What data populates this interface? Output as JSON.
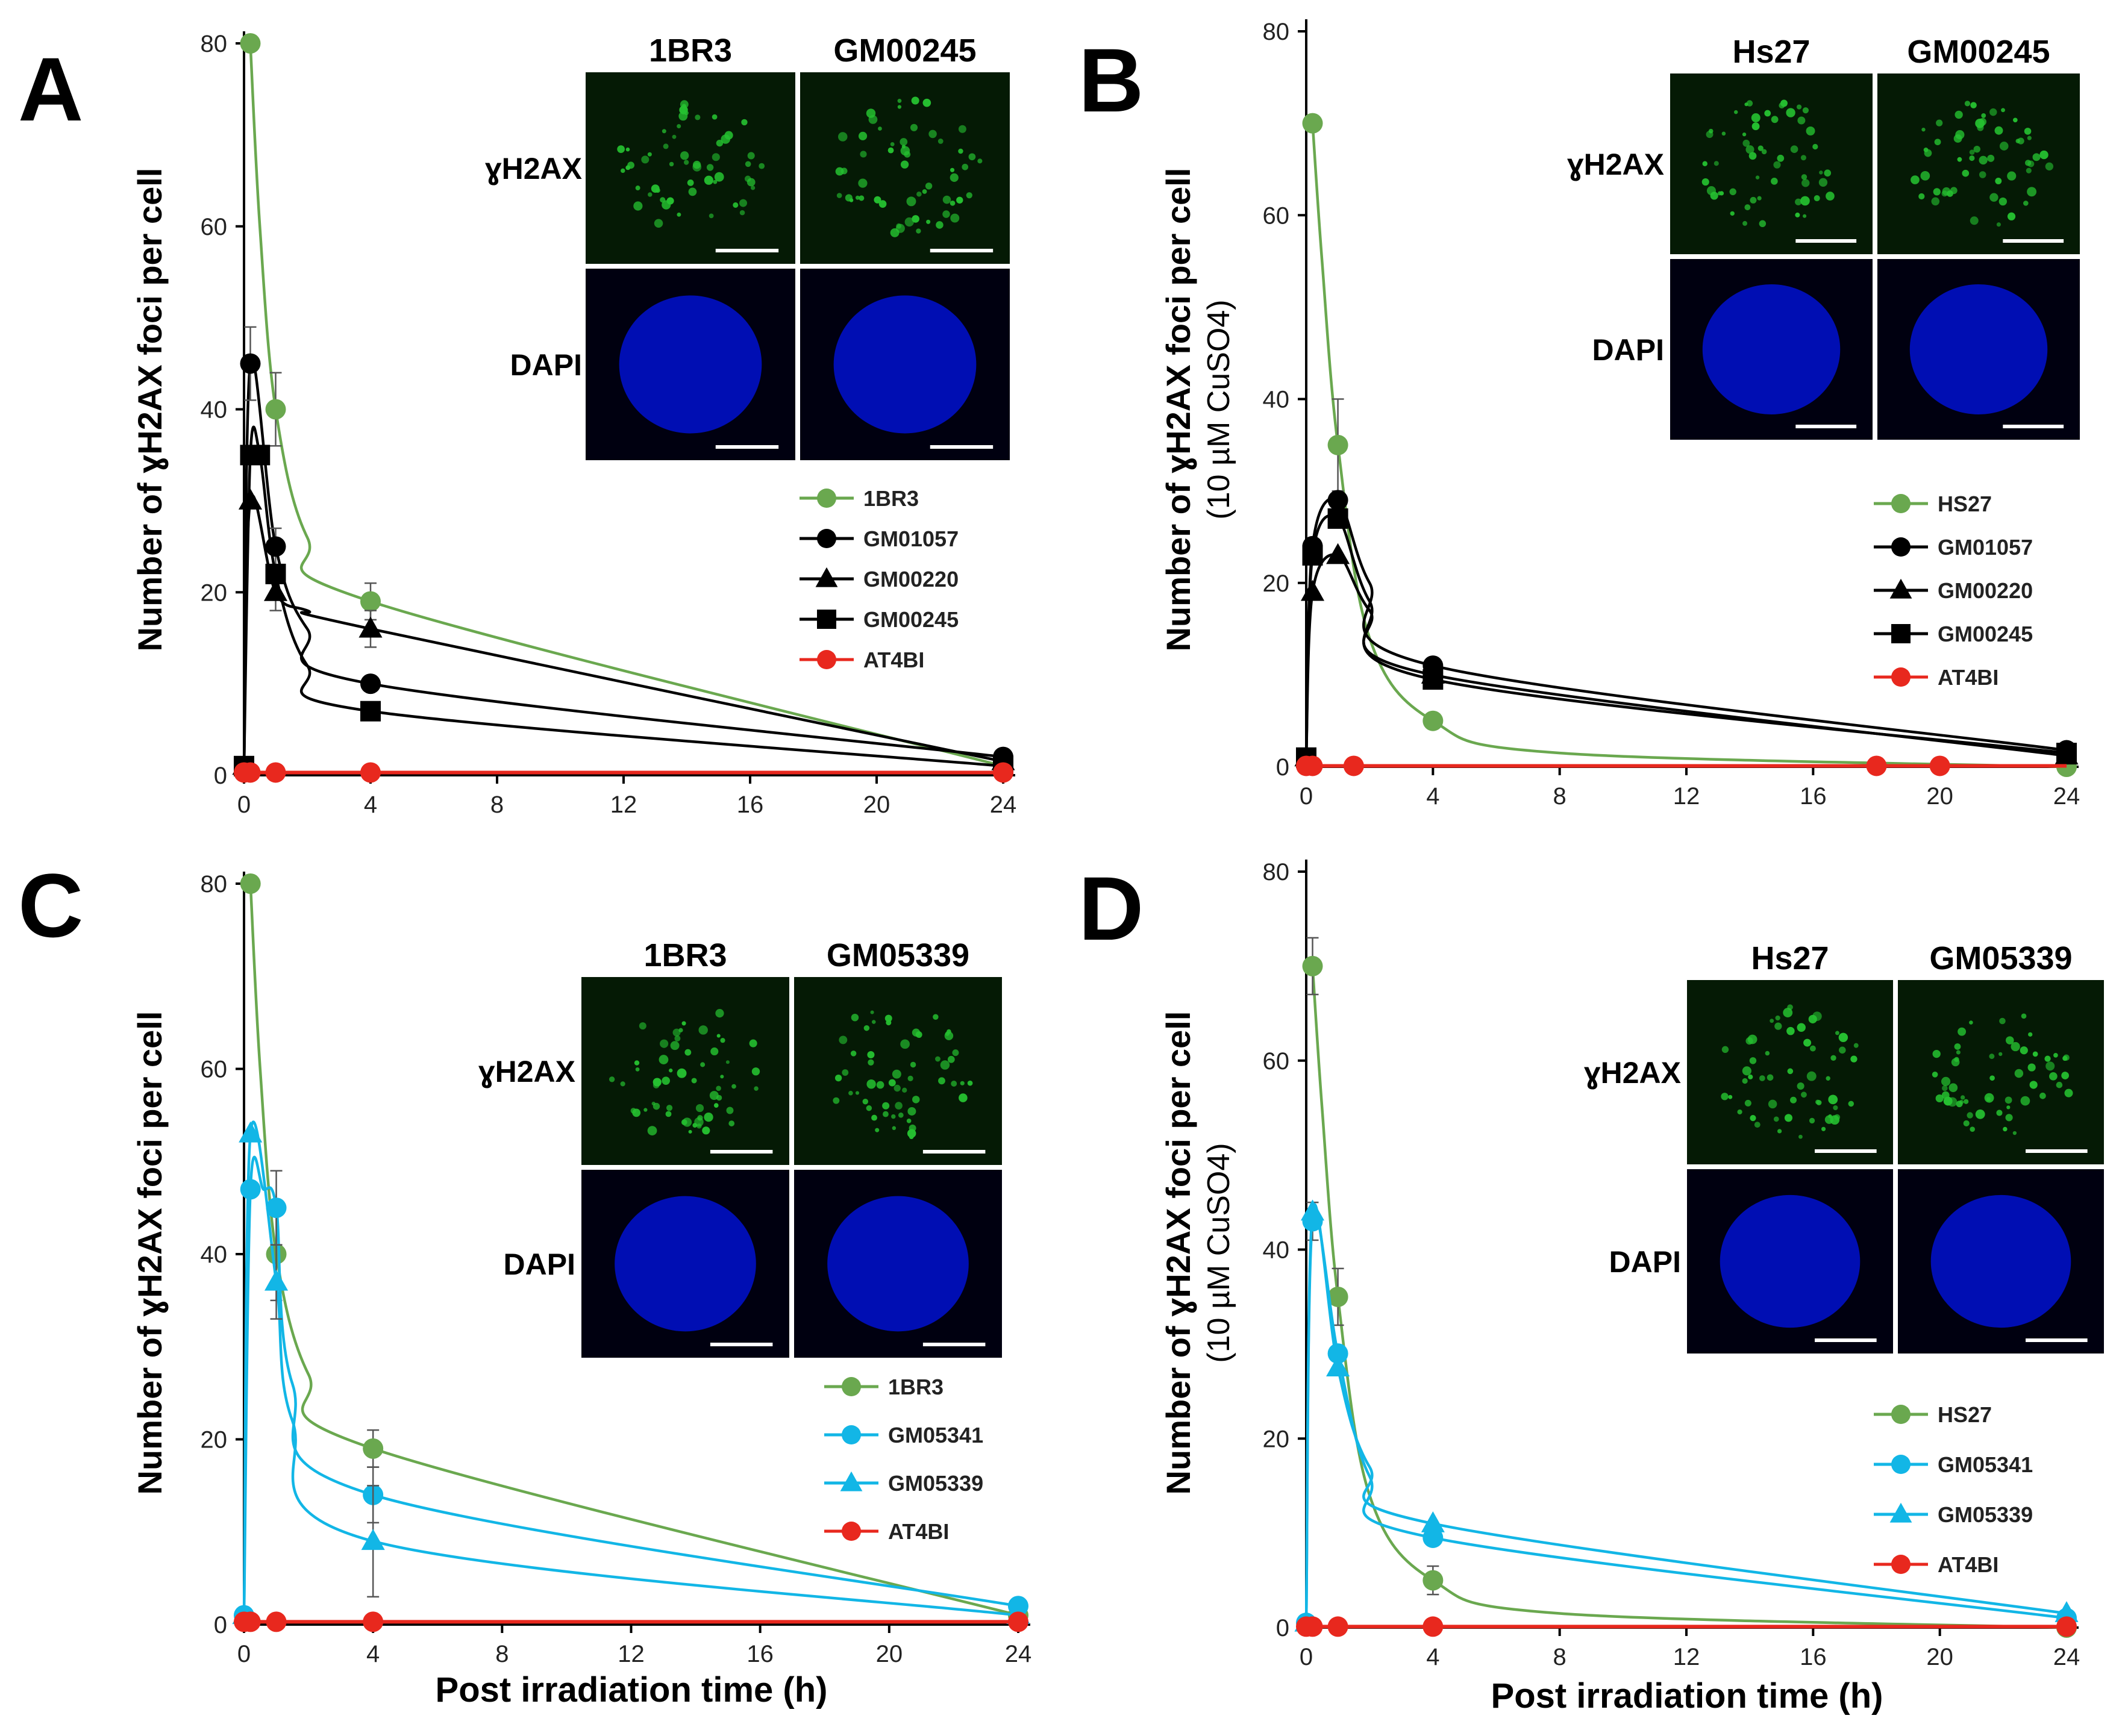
{
  "colors": {
    "green": "#6aa84f",
    "black": "#000000",
    "red": "#e8281e",
    "cyan": "#12b6e6",
    "axis": "#000000",
    "blue": "#0010d0",
    "fluor": "#25c030"
  },
  "xlabel": "Post irradiation time (h)",
  "chart_data": [
    {
      "panel": "A",
      "type": "line",
      "ylabel": "Number of ɣH2AX foci per cell",
      "ylabel_sub": "",
      "xlim": [
        0,
        24
      ],
      "ylim": [
        0,
        80
      ],
      "xticks": [
        0,
        4,
        8,
        12,
        16,
        20,
        24
      ],
      "yticks": [
        0,
        20,
        40,
        60,
        80
      ],
      "images": {
        "columns": [
          "1BR3",
          "GM00245"
        ],
        "rows": [
          "ɣH2AX",
          "DAPI"
        ]
      },
      "series": [
        {
          "name": "1BR3",
          "color": "green",
          "marker": "circle",
          "points": [
            [
              0.2,
              80
            ],
            [
              1,
              40
            ],
            [
              4,
              19
            ],
            [
              24,
              1
            ]
          ],
          "curve": [
            [
              0.2,
              80
            ],
            [
              0.5,
              60
            ],
            [
              1,
              40
            ],
            [
              2,
              26
            ],
            [
              4,
              19
            ],
            [
              24,
              1
            ]
          ],
          "errors": [
            0,
            4,
            2,
            0
          ]
        },
        {
          "name": "GM01057",
          "color": "black",
          "marker": "circle",
          "points": [
            [
              0,
              1
            ],
            [
              0.2,
              45
            ],
            [
              1,
              25
            ],
            [
              4,
              10
            ],
            [
              24,
              2
            ]
          ],
          "curve": [
            [
              0,
              1
            ],
            [
              0.2,
              45
            ],
            [
              1,
              25
            ],
            [
              2,
              16
            ],
            [
              4,
              10
            ],
            [
              24,
              2
            ]
          ],
          "errors": [
            0,
            4,
            2,
            0,
            0
          ]
        },
        {
          "name": "GM00220",
          "color": "black",
          "marker": "triangle",
          "points": [
            [
              0,
              1
            ],
            [
              0.2,
              30
            ],
            [
              1,
              20
            ],
            [
              4,
              16
            ],
            [
              24,
              1.5
            ]
          ],
          "curve": [
            [
              0,
              1
            ],
            [
              0.2,
              30
            ],
            [
              1,
              20
            ],
            [
              2,
              18
            ],
            [
              4,
              16
            ],
            [
              24,
              1.5
            ]
          ],
          "errors": [
            0,
            0,
            2,
            2,
            0
          ]
        },
        {
          "name": "GM00245",
          "color": "black",
          "marker": "square",
          "points": [
            [
              0,
              1
            ],
            [
              0.2,
              35
            ],
            [
              0.5,
              35
            ],
            [
              1,
              22
            ],
            [
              4,
              7
            ],
            [
              24,
              1
            ]
          ],
          "curve": [
            [
              0,
              1
            ],
            [
              0.2,
              35
            ],
            [
              0.5,
              35
            ],
            [
              1,
              22
            ],
            [
              2,
              12
            ],
            [
              4,
              7
            ],
            [
              24,
              1
            ]
          ],
          "errors": [
            0,
            0,
            0,
            0,
            0,
            0
          ]
        },
        {
          "name": "AT4BI",
          "color": "red",
          "marker": "circle",
          "points": [
            [
              0,
              0.3
            ],
            [
              0.2,
              0.3
            ],
            [
              1,
              0.3
            ],
            [
              4,
              0.3
            ],
            [
              24,
              0.3
            ]
          ],
          "curve": [
            [
              0,
              0.3
            ],
            [
              24,
              0.3
            ]
          ],
          "errors": [
            0,
            0,
            0,
            0,
            0
          ]
        }
      ]
    },
    {
      "panel": "B",
      "type": "line",
      "ylabel": "Number of ɣH2AX foci per cell",
      "ylabel_sub": "(10 µM CuSO4)",
      "xlim": [
        0,
        24
      ],
      "ylim": [
        0,
        80
      ],
      "xticks": [
        0,
        4,
        8,
        12,
        16,
        20,
        24
      ],
      "yticks": [
        0,
        20,
        40,
        60,
        80
      ],
      "images": {
        "columns": [
          "Hs27",
          "GM00245"
        ],
        "rows": [
          "ɣH2AX",
          "DAPI"
        ]
      },
      "series": [
        {
          "name": "HS27",
          "color": "green",
          "marker": "circle",
          "points": [
            [
              0.2,
              70
            ],
            [
              1,
              35
            ],
            [
              4,
              5
            ],
            [
              24,
              0
            ]
          ],
          "curve": [
            [
              0.2,
              70
            ],
            [
              0.5,
              55
            ],
            [
              1,
              35
            ],
            [
              2,
              14
            ],
            [
              4,
              5
            ],
            [
              8,
              1.5
            ],
            [
              24,
              0
            ]
          ],
          "errors": [
            0,
            5,
            0,
            0
          ]
        },
        {
          "name": "GM01057",
          "color": "black",
          "marker": "circle",
          "points": [
            [
              0,
              1
            ],
            [
              0.2,
              24
            ],
            [
              1,
              29
            ],
            [
              4,
              11
            ],
            [
              24,
              1.8
            ]
          ],
          "curve": [
            [
              0,
              1
            ],
            [
              0.2,
              24
            ],
            [
              1,
              29
            ],
            [
              2,
              20
            ],
            [
              4,
              11
            ],
            [
              24,
              1.8
            ]
          ],
          "errors": [
            0,
            0,
            0,
            0,
            0
          ]
        },
        {
          "name": "GM00220",
          "color": "black",
          "marker": "triangle",
          "points": [
            [
              0,
              1
            ],
            [
              0.2,
              19
            ],
            [
              1,
              23
            ],
            [
              4,
              10
            ],
            [
              24,
              1.2
            ]
          ],
          "curve": [
            [
              0,
              1
            ],
            [
              0.2,
              19
            ],
            [
              1,
              23
            ],
            [
              2,
              17
            ],
            [
              4,
              10
            ],
            [
              24,
              1.2
            ]
          ],
          "errors": [
            0,
            0,
            0,
            0,
            0
          ]
        },
        {
          "name": "GM00245",
          "color": "black",
          "marker": "square",
          "points": [
            [
              0,
              1
            ],
            [
              0.2,
              23
            ],
            [
              1,
              27
            ],
            [
              4,
              9.5
            ],
            [
              24,
              1.5
            ]
          ],
          "curve": [
            [
              0,
              1
            ],
            [
              0.2,
              23
            ],
            [
              1,
              27
            ],
            [
              2,
              18
            ],
            [
              4,
              9.5
            ],
            [
              24,
              1.5
            ]
          ],
          "errors": [
            0,
            0,
            0,
            0,
            0
          ]
        },
        {
          "name": "AT4BI",
          "color": "red",
          "marker": "circle",
          "points": [
            [
              0,
              0.1
            ],
            [
              0.2,
              0.1
            ],
            [
              1.5,
              0.1
            ],
            [
              18,
              0.1
            ],
            [
              20,
              0.1
            ]
          ],
          "curve": [
            [
              0,
              0.1
            ],
            [
              24,
              0.1
            ]
          ],
          "errors": [
            0,
            0,
            0,
            0,
            0
          ]
        }
      ]
    },
    {
      "panel": "C",
      "type": "line",
      "ylabel": "Number of ɣH2AX foci per cell",
      "ylabel_sub": "",
      "xlim": [
        0,
        24
      ],
      "ylim": [
        0,
        80
      ],
      "xticks": [
        0,
        4,
        8,
        12,
        16,
        20,
        24
      ],
      "yticks": [
        0,
        20,
        40,
        60,
        80
      ],
      "images": {
        "columns": [
          "1BR3",
          "GM05339"
        ],
        "rows": [
          "ɣH2AX",
          "DAPI"
        ]
      },
      "series": [
        {
          "name": "1BR3",
          "color": "green",
          "marker": "circle",
          "points": [
            [
              0.2,
              80
            ],
            [
              1,
              40
            ],
            [
              4,
              19
            ],
            [
              24,
              1
            ]
          ],
          "curve": [
            [
              0.2,
              80
            ],
            [
              0.5,
              60
            ],
            [
              1,
              40
            ],
            [
              2,
              27
            ],
            [
              4,
              19
            ],
            [
              24,
              1
            ]
          ],
          "errors": [
            0,
            5,
            2,
            0
          ]
        },
        {
          "name": "GM05341",
          "color": "cyan",
          "marker": "circle",
          "points": [
            [
              0,
              1
            ],
            [
              0.2,
              47
            ],
            [
              1,
              45
            ],
            [
              4,
              14
            ],
            [
              24,
              2
            ]
          ],
          "curve": [
            [
              0,
              1
            ],
            [
              0.2,
              47
            ],
            [
              0.6,
              47
            ],
            [
              1,
              45
            ],
            [
              1.5,
              26
            ],
            [
              4,
              14
            ],
            [
              24,
              2
            ]
          ],
          "errors": [
            0,
            0,
            4,
            3,
            0
          ]
        },
        {
          "name": "GM05339",
          "color": "cyan",
          "marker": "triangle",
          "points": [
            [
              0,
              1
            ],
            [
              0.2,
              53
            ],
            [
              1,
              37
            ],
            [
              4,
              9
            ],
            [
              24,
              1
            ]
          ],
          "curve": [
            [
              0,
              1
            ],
            [
              0.2,
              53
            ],
            [
              1,
              37
            ],
            [
              1.5,
              22
            ],
            [
              4,
              9
            ],
            [
              24,
              1
            ]
          ],
          "errors": [
            0,
            0,
            4,
            6,
            0
          ]
        },
        {
          "name": "AT4BI",
          "color": "red",
          "marker": "circle",
          "points": [
            [
              0,
              0.3
            ],
            [
              0.2,
              0.3
            ],
            [
              1,
              0.3
            ],
            [
              4,
              0.3
            ],
            [
              24,
              0.3
            ]
          ],
          "curve": [
            [
              0,
              0.3
            ],
            [
              24,
              0.3
            ]
          ],
          "errors": [
            0,
            0,
            0,
            0,
            0
          ]
        }
      ]
    },
    {
      "panel": "D",
      "type": "line",
      "ylabel": "Number of ɣH2AX foci per cell",
      "ylabel_sub": "(10 µM CuSO4)",
      "xlim": [
        0,
        24
      ],
      "ylim": [
        0,
        80
      ],
      "xticks": [
        0,
        4,
        8,
        12,
        16,
        20,
        24
      ],
      "yticks": [
        0,
        20,
        40,
        60,
        80
      ],
      "images": {
        "columns": [
          "Hs27",
          "GM05339"
        ],
        "rows": [
          "ɣH2AX",
          "DAPI"
        ]
      },
      "series": [
        {
          "name": "HS27",
          "color": "green",
          "marker": "circle",
          "points": [
            [
              0.2,
              70
            ],
            [
              1,
              35
            ],
            [
              4,
              5
            ],
            [
              24,
              0
            ]
          ],
          "curve": [
            [
              0.2,
              70
            ],
            [
              0.5,
              55
            ],
            [
              1,
              35
            ],
            [
              2,
              14
            ],
            [
              4,
              5
            ],
            [
              8,
              1.5
            ],
            [
              24,
              0
            ]
          ],
          "errors": [
            3,
            3,
            1.5,
            0
          ]
        },
        {
          "name": "GM05341",
          "color": "cyan",
          "marker": "circle",
          "points": [
            [
              0,
              0.5
            ],
            [
              0.2,
              43
            ],
            [
              1,
              29
            ],
            [
              4,
              9.5
            ],
            [
              24,
              1
            ]
          ],
          "curve": [
            [
              0,
              0.5
            ],
            [
              0.2,
              43
            ],
            [
              1,
              29
            ],
            [
              2,
              16
            ],
            [
              4,
              9.5
            ],
            [
              24,
              1
            ]
          ],
          "errors": [
            0,
            2,
            0,
            0,
            0
          ]
        },
        {
          "name": "GM05339",
          "color": "cyan",
          "marker": "triangle",
          "points": [
            [
              0,
              0.5
            ],
            [
              0.2,
              44
            ],
            [
              1,
              27.5
            ],
            [
              4,
              11
            ],
            [
              24,
              1.5
            ]
          ],
          "curve": [
            [
              0,
              0.5
            ],
            [
              0.2,
              44
            ],
            [
              1,
              27.5
            ],
            [
              2,
              17
            ],
            [
              4,
              11
            ],
            [
              24,
              1.5
            ]
          ],
          "errors": [
            0,
            0,
            0,
            0,
            0
          ]
        },
        {
          "name": "AT4BI",
          "color": "red",
          "marker": "circle",
          "points": [
            [
              0,
              0.1
            ],
            [
              0.2,
              0.1
            ],
            [
              1,
              0.1
            ],
            [
              4,
              0.1
            ],
            [
              24,
              0.1
            ]
          ],
          "curve": [
            [
              0,
              0.1
            ],
            [
              24,
              0.1
            ]
          ],
          "errors": [
            0,
            0,
            0,
            0,
            0
          ]
        }
      ]
    }
  ]
}
